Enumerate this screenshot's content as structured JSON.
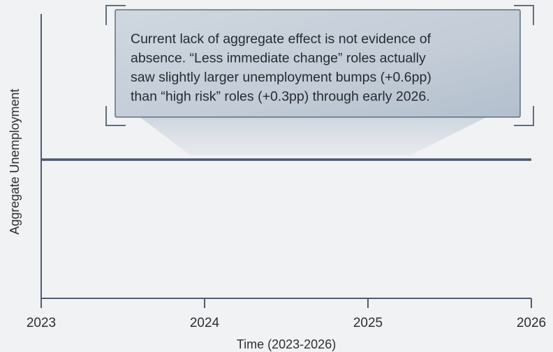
{
  "chart_data": {
    "type": "line",
    "title": "",
    "xlabel": "Time (2023-2026)",
    "ylabel": "Aggregate Unemployment",
    "x_ticks": [
      "2023",
      "2024",
      "2025",
      "2026"
    ],
    "xlim": [
      2023,
      2026
    ],
    "ylim": [
      0,
      1
    ],
    "series": [
      {
        "x": [
          2023,
          2026
        ],
        "y": [
          0.5,
          0.5
        ]
      }
    ],
    "annotation": {
      "lines": [
        "Current lack of aggregate effect is not evidence of",
        "absence. “Less immediate change” roles actually",
        "saw slightly larger unemployment bumps (+0.6pp)",
        "than “high risk” roles (+0.3pp) through early 2026."
      ]
    },
    "grid": false,
    "legend": "none",
    "colors": {
      "line": "#4a5870",
      "axis": "#4f5d72",
      "callout_fill": "#bfc9d4",
      "callout_border": "#5f6f84"
    }
  }
}
